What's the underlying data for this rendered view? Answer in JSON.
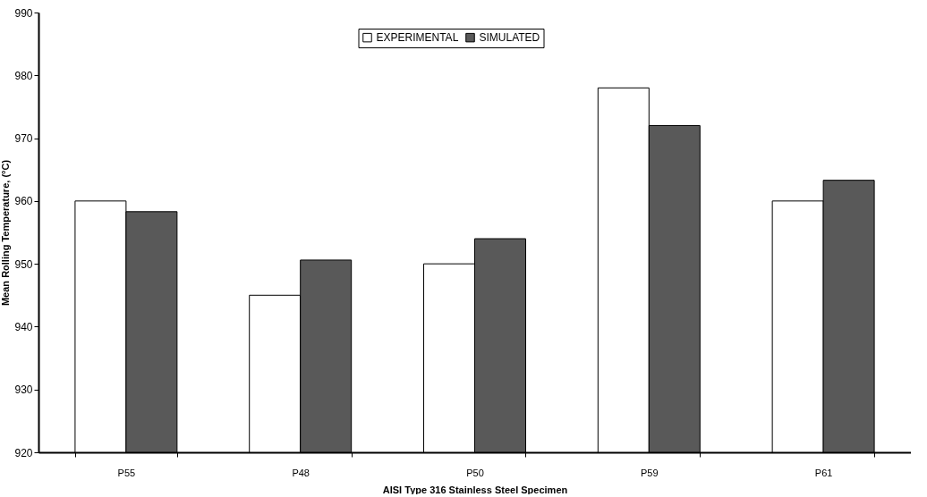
{
  "chart_data": {
    "type": "bar",
    "xlabel": "AISI Type 316 Stainless Steel Specimen",
    "ylabel": "Mean Rolling Temperature, (°C)",
    "categories": [
      "P55",
      "P48",
      "P50",
      "P59",
      "P61"
    ],
    "series": [
      {
        "name": "EXPERIMENTAL",
        "color": "#ffffff",
        "values": [
          960,
          945,
          950,
          978,
          960
        ]
      },
      {
        "name": "SIMULATED",
        "color": "#595959",
        "values": [
          958.3,
          950.6,
          954,
          972,
          963.3
        ]
      }
    ],
    "ylim": [
      920,
      990
    ],
    "yticks": [
      920,
      930,
      940,
      950,
      960,
      970,
      980,
      990
    ],
    "grid": false,
    "legend": "top"
  }
}
